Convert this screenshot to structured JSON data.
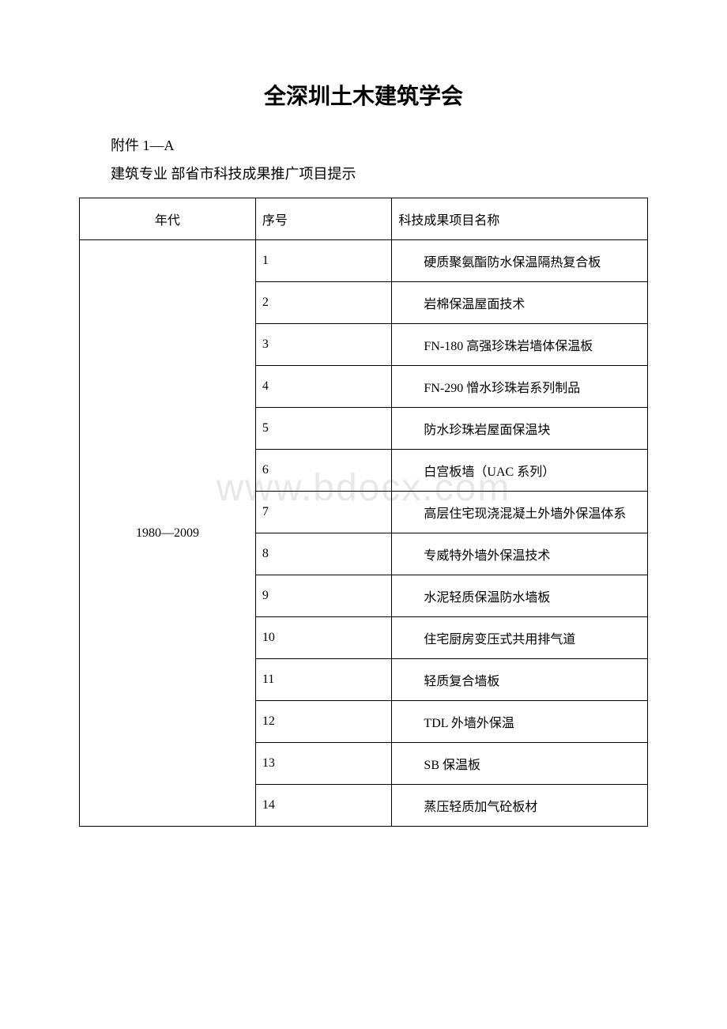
{
  "title": "全深圳土木建筑学会",
  "subtitle1": "附件 1—A",
  "subtitle2": "建筑专业 部省市科技成果推广项目提示",
  "watermark": "www.bdocx.com",
  "table": {
    "headers": {
      "era": "年代",
      "seq": "序号",
      "name": "科技成果项目名称"
    },
    "era_value": "1980—2009",
    "rows": [
      {
        "seq": "1",
        "name": "硬质聚氨酯防水保温隔热复合板"
      },
      {
        "seq": "2",
        "name": "岩棉保温屋面技术"
      },
      {
        "seq": "3",
        "name": "FN-180 高强珍珠岩墙体保温板"
      },
      {
        "seq": "4",
        "name": "FN-290 憎水珍珠岩系列制品"
      },
      {
        "seq": "5",
        "name": "防水珍珠岩屋面保温块"
      },
      {
        "seq": "6",
        "name": "白宫板墙（UAC 系列）"
      },
      {
        "seq": "7",
        "name": "高层住宅现浇混凝土外墙外保温体系"
      },
      {
        "seq": "8",
        "name": "专威特外墙外保温技术"
      },
      {
        "seq": "9",
        "name": "水泥轻质保温防水墙板"
      },
      {
        "seq": "10",
        "name": "住宅厨房变压式共用排气道"
      },
      {
        "seq": "11",
        "name": "轻质复合墙板"
      },
      {
        "seq": "12",
        "name": "TDL 外墙外保温"
      },
      {
        "seq": "13",
        "name": "SB 保温板"
      },
      {
        "seq": "14",
        "name": "蒸压轻质加气砼板材"
      }
    ]
  },
  "colors": {
    "text": "#000000",
    "background": "#ffffff",
    "border": "#000000",
    "watermark": "#e8e8e8"
  }
}
